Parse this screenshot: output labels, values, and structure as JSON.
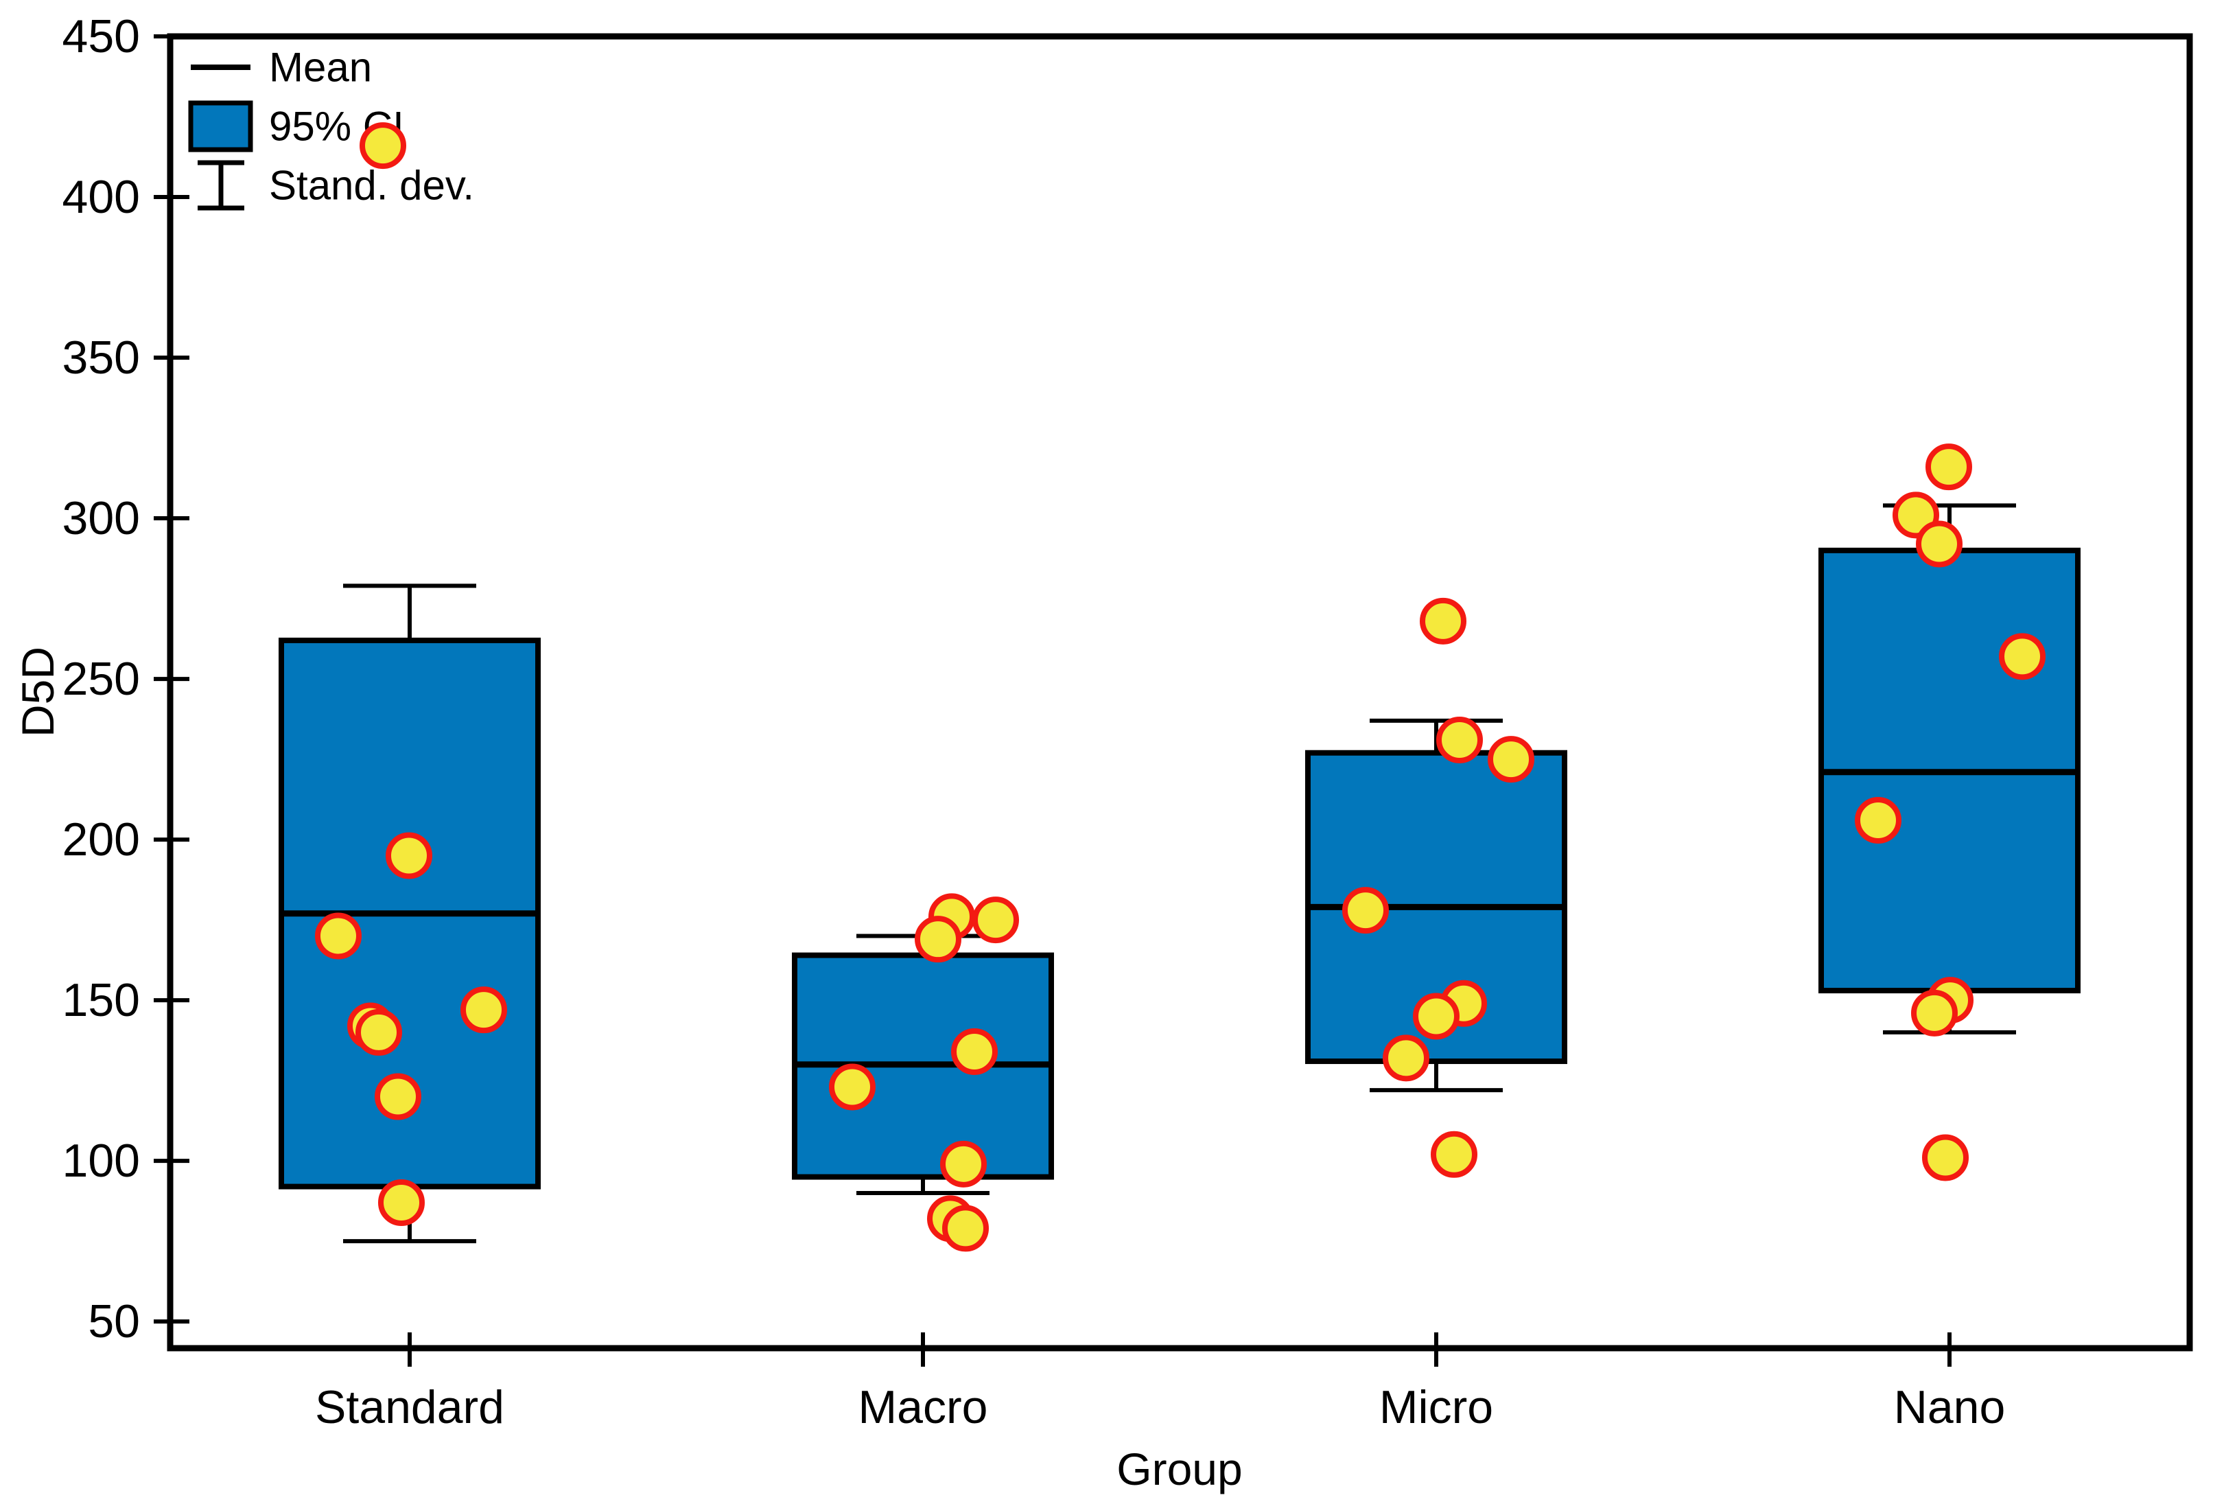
{
  "chart_data": {
    "type": "box",
    "title": "",
    "xlabel": "Group",
    "ylabel": "D5D",
    "ylim": [
      41.7,
      450
    ],
    "y_ticks": [
      450,
      400,
      350,
      300,
      250,
      200,
      150,
      100,
      50
    ],
    "grid": false,
    "legend_position": "top-left-inside",
    "legend": [
      {
        "label": "Mean",
        "swatch": "mean-line"
      },
      {
        "label": "95% CI",
        "swatch": "ci-box"
      },
      {
        "label": "Stand. dev.",
        "swatch": "error-bar"
      }
    ],
    "colors": {
      "ci_fill": "#0277bb",
      "point_fill": "#f5e93c",
      "point_stroke": "#f31a12",
      "line": "#000000",
      "background": "#ffffff"
    },
    "groups": [
      {
        "label": "Standard",
        "mean": 177,
        "ci_low": 92,
        "ci_high": 262,
        "sd_low": 75,
        "sd_high": 279,
        "values": [
          416,
          195,
          170,
          147,
          142,
          140,
          120,
          87
        ],
        "points": [
          [
            -39,
            416
          ],
          [
            -1,
            195
          ],
          [
            -104,
            170
          ],
          [
            108,
            147
          ],
          [
            -57,
            142
          ],
          [
            -45,
            140
          ],
          [
            -17,
            120
          ],
          [
            -12,
            87
          ]
        ]
      },
      {
        "label": "Macro",
        "mean": 130,
        "ci_low": 95,
        "ci_high": 164,
        "sd_low": 90,
        "sd_high": 170,
        "values": [
          176,
          175,
          169,
          134,
          123,
          99,
          82,
          79
        ],
        "points": [
          [
            42,
            176
          ],
          [
            106,
            175
          ],
          [
            22,
            169
          ],
          [
            75,
            134
          ],
          [
            -103,
            123
          ],
          [
            59,
            99
          ],
          [
            40,
            82
          ],
          [
            62,
            79
          ]
        ]
      },
      {
        "label": "Micro",
        "mean": 179,
        "ci_low": 131,
        "ci_high": 227,
        "sd_low": 122,
        "sd_high": 237,
        "values": [
          268,
          231,
          225,
          178,
          149,
          145,
          132,
          102
        ],
        "points": [
          [
            10,
            268
          ],
          [
            34,
            231
          ],
          [
            109,
            225
          ],
          [
            -103,
            178
          ],
          [
            40,
            149
          ],
          [
            0,
            145
          ],
          [
            -44,
            132
          ],
          [
            26,
            102
          ]
        ]
      },
      {
        "label": "Nano",
        "mean": 221,
        "ci_low": 153,
        "ci_high": 290,
        "sd_low": 140,
        "sd_high": 304,
        "values": [
          316,
          301,
          292,
          257,
          206,
          150,
          146,
          101
        ],
        "points": [
          [
            -1,
            316
          ],
          [
            -49,
            301
          ],
          [
            -15,
            292
          ],
          [
            106,
            257
          ],
          [
            -104,
            206
          ],
          [
            1,
            150
          ],
          [
            -22,
            146
          ],
          [
            -6,
            101
          ]
        ]
      }
    ]
  }
}
